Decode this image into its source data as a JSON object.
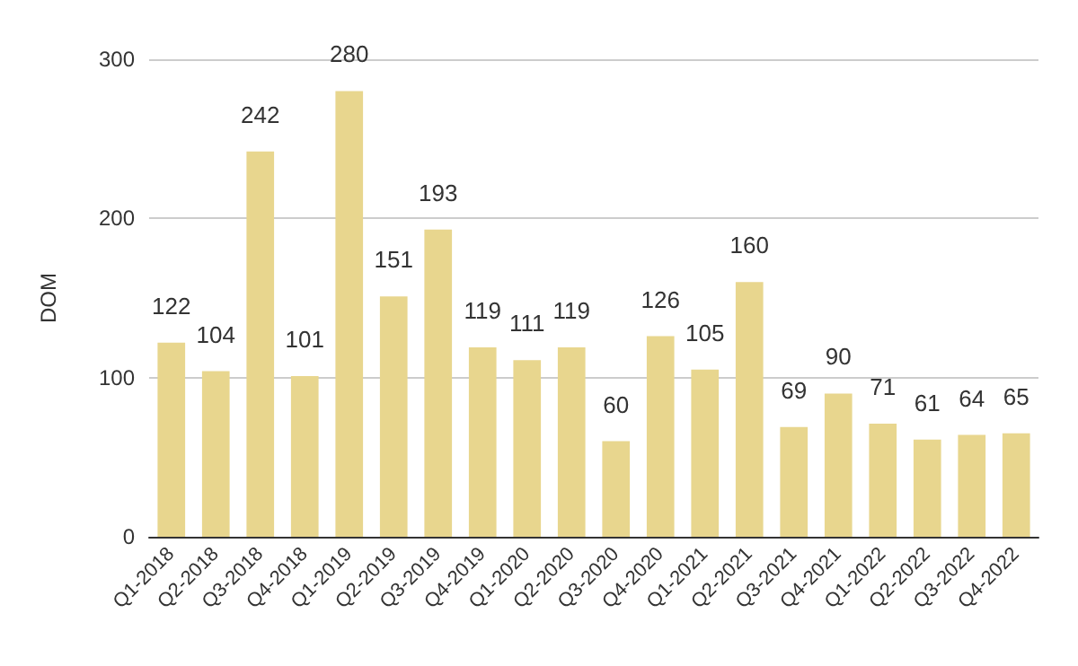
{
  "chart_data": {
    "type": "bar",
    "ylabel": "DOM",
    "categories": [
      "Q1-2018",
      "Q2-2018",
      "Q3-2018",
      "Q4-2018",
      "Q1-2019",
      "Q2-2019",
      "Q3-2019",
      "Q4-2019",
      "Q1-2020",
      "Q2-2020",
      "Q3-2020",
      "Q4-2020",
      "Q1-2021",
      "Q2-2021",
      "Q3-2021",
      "Q4-2021",
      "Q1-2022",
      "Q2-2022",
      "Q3-2022",
      "Q4-2022"
    ],
    "values": [
      122,
      104,
      242,
      101,
      280,
      151,
      193,
      119,
      111,
      119,
      60,
      126,
      105,
      160,
      69,
      90,
      71,
      61,
      64,
      65
    ],
    "color": "#e8d68e",
    "ylim": [
      0,
      300
    ],
    "yticks": [
      0,
      100,
      200,
      300
    ],
    "grid": "y",
    "data_labels": true
  }
}
